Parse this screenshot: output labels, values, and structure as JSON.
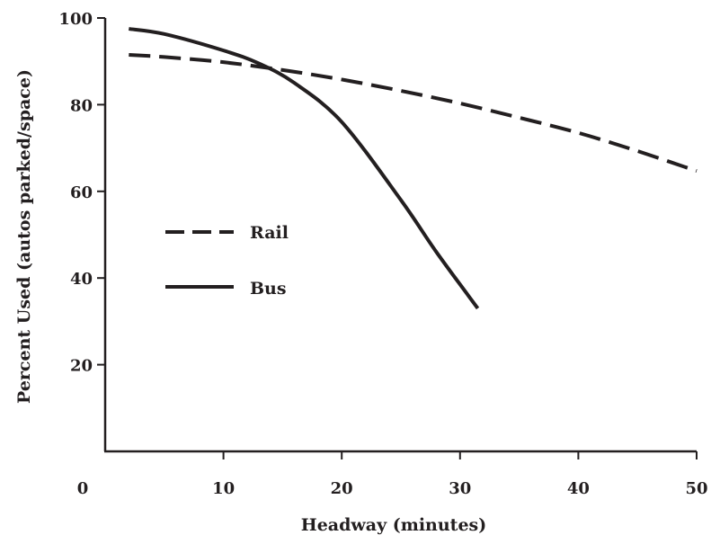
{
  "chart_data": {
    "type": "line",
    "title": "",
    "xlabel": "Headway (minutes)",
    "ylabel": "Percent Used (autos parked/space)",
    "xlim": [
      0,
      50
    ],
    "ylim": [
      0,
      100
    ],
    "x_ticks": [
      0,
      10,
      20,
      30,
      40,
      50
    ],
    "y_ticks": [
      20,
      40,
      60,
      80,
      100
    ],
    "x_tick_labels": [
      "0",
      "10",
      "20",
      "30",
      "40",
      "50"
    ],
    "y_tick_labels": [
      "20",
      "40",
      "60",
      "80",
      "100"
    ],
    "grid": false,
    "legend_position": "center-left",
    "line_color": "#231f20",
    "series": [
      {
        "name": "Rail",
        "line_style": "dashed",
        "x": [
          2,
          5,
          10,
          15,
          20,
          25,
          30,
          35,
          40,
          45,
          50
        ],
        "y": [
          91.5,
          91.0,
          89.8,
          88.0,
          85.8,
          83.2,
          80.3,
          77.0,
          73.5,
          69.3,
          64.7
        ]
      },
      {
        "name": "Bus",
        "line_style": "solid",
        "x": [
          2,
          5,
          10,
          13,
          16,
          20,
          25,
          28,
          31.5
        ],
        "y": [
          97.5,
          96.3,
          92.5,
          89.5,
          85.0,
          76.0,
          58.0,
          46.0,
          33.0
        ]
      }
    ]
  }
}
